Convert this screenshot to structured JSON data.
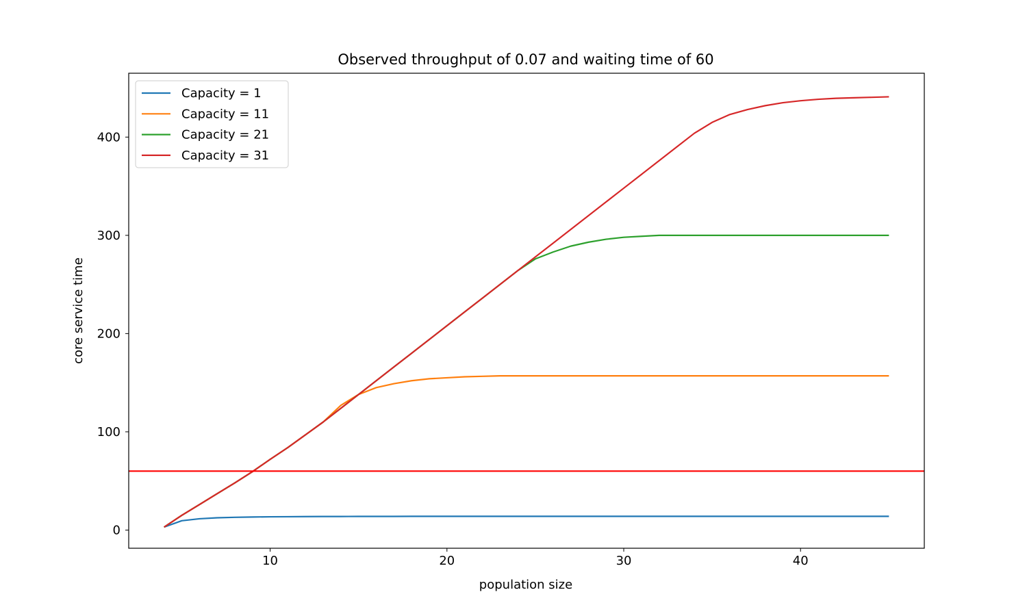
{
  "chart_data": {
    "type": "line",
    "title": "Observed throughput of 0.07 and waiting time of 60",
    "xlabel": "population size",
    "ylabel": "core service time",
    "xlim": [
      2,
      47
    ],
    "ylim": [
      -18.5,
      465
    ],
    "xticks": [
      10,
      20,
      30,
      40
    ],
    "yticks": [
      0,
      100,
      200,
      300,
      400
    ],
    "grid": false,
    "legend_position": "top-left",
    "hline": {
      "y": 60,
      "color": "#ff0000"
    },
    "x": [
      4,
      5,
      6,
      7,
      8,
      9,
      10,
      11,
      12,
      13,
      14,
      15,
      16,
      17,
      18,
      19,
      20,
      21,
      22,
      23,
      24,
      25,
      26,
      27,
      28,
      29,
      30,
      31,
      32,
      33,
      34,
      35,
      36,
      37,
      38,
      39,
      40,
      41,
      42,
      43,
      44,
      45
    ],
    "series": [
      {
        "name": "Capacity = 1",
        "color": "#1f77b4",
        "values": [
          3,
          9.5,
          11.5,
          12.5,
          13,
          13.3,
          13.5,
          13.6,
          13.7,
          13.8,
          13.8,
          13.9,
          13.9,
          13.9,
          14,
          14,
          14,
          14,
          14,
          14,
          14,
          14,
          14,
          14,
          14,
          14,
          14,
          14,
          14,
          14,
          14,
          14,
          14,
          14,
          14,
          14,
          14,
          14,
          14,
          14,
          14,
          14
        ]
      },
      {
        "name": "Capacity = 11",
        "color": "#ff7f0e",
        "values": [
          3,
          15,
          26,
          37,
          48,
          59.5,
          72,
          84,
          97,
          110,
          127,
          138,
          145,
          149,
          152,
          154,
          155,
          156,
          156.5,
          157,
          157,
          157,
          157,
          157,
          157,
          157,
          157,
          157,
          157,
          157,
          157,
          157,
          157,
          157,
          157,
          157,
          157,
          157,
          157,
          157,
          157,
          157
        ]
      },
      {
        "name": "Capacity = 21",
        "color": "#2ca02c",
        "values": [
          3,
          15,
          26,
          37,
          48,
          59.5,
          72,
          84,
          97,
          110,
          124,
          138,
          152,
          166,
          180,
          194,
          208,
          222,
          236,
          250,
          264,
          276,
          283,
          289,
          293,
          296,
          298,
          299,
          300,
          300,
          300,
          300,
          300,
          300,
          300,
          300,
          300,
          300,
          300,
          300,
          300,
          300
        ]
      },
      {
        "name": "Capacity = 31",
        "color": "#d62728",
        "values": [
          3,
          15,
          26,
          37,
          48,
          59.5,
          72,
          84,
          97,
          110,
          124,
          138,
          152,
          166,
          180,
          194,
          208,
          222,
          236,
          250,
          264,
          278,
          292,
          306,
          320,
          334,
          348,
          362,
          376,
          390,
          404,
          415,
          423,
          428,
          432,
          435,
          437,
          438.5,
          439.5,
          440,
          440.5,
          441
        ]
      }
    ]
  }
}
